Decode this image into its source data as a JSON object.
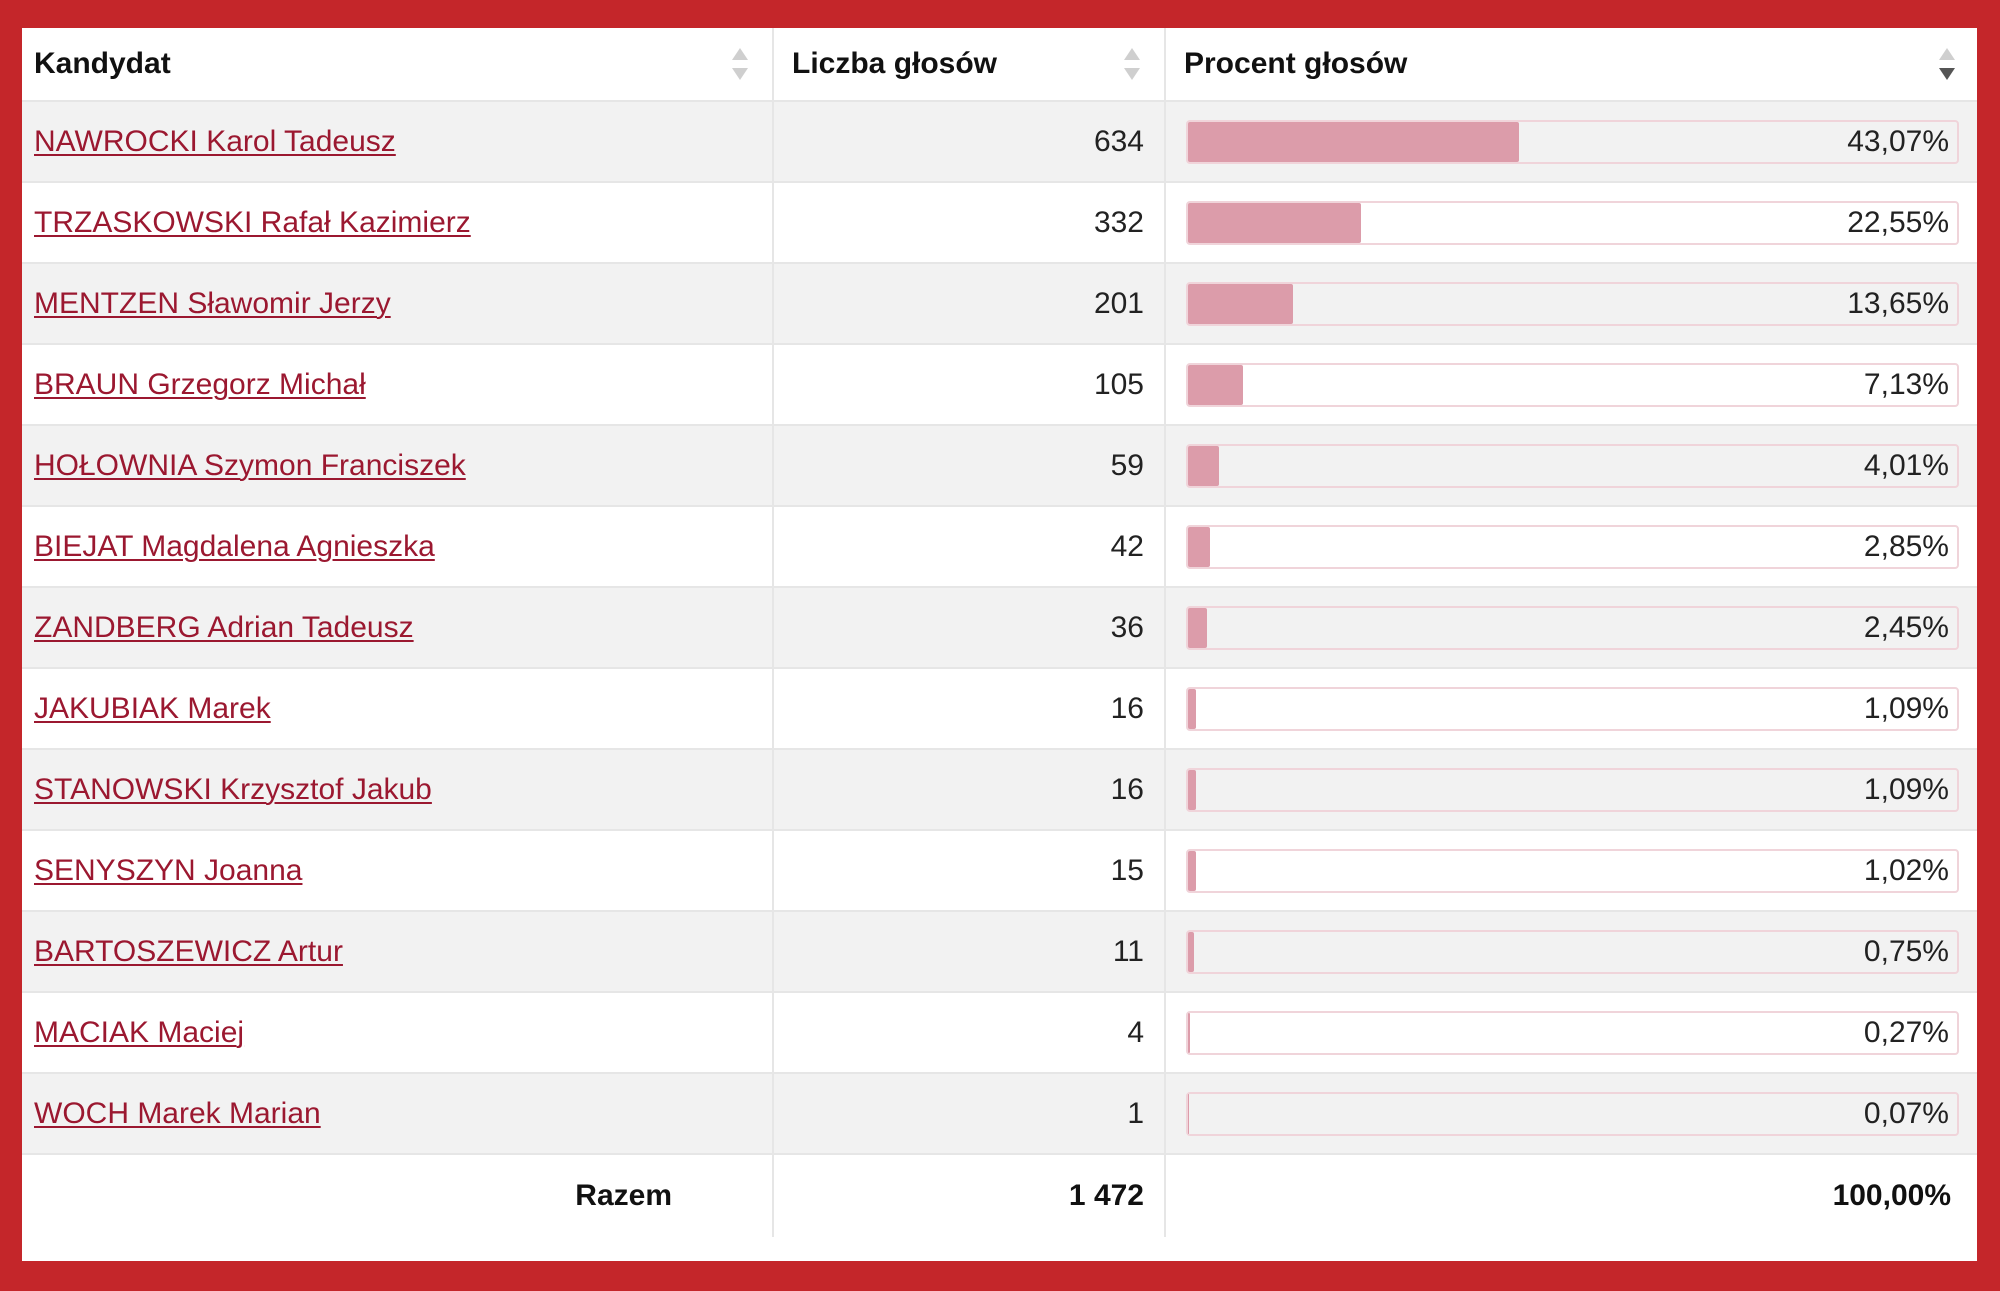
{
  "table": {
    "headers": [
      "Kandydat",
      "Liczba głosów",
      "Procent głosów"
    ],
    "rows": [
      {
        "name": "NAWROCKI Karol Tadeusz",
        "votes": "634",
        "percent_label": "43,07%",
        "percent": 43.07
      },
      {
        "name": "TRZASKOWSKI Rafał Kazimierz",
        "votes": "332",
        "percent_label": "22,55%",
        "percent": 22.55
      },
      {
        "name": "MENTZEN Sławomir Jerzy",
        "votes": "201",
        "percent_label": "13,65%",
        "percent": 13.65
      },
      {
        "name": "BRAUN Grzegorz Michał",
        "votes": "105",
        "percent_label": "7,13%",
        "percent": 7.13
      },
      {
        "name": "HOŁOWNIA Szymon Franciszek",
        "votes": "59",
        "percent_label": "4,01%",
        "percent": 4.01
      },
      {
        "name": "BIEJAT Magdalena Agnieszka",
        "votes": "42",
        "percent_label": "2,85%",
        "percent": 2.85
      },
      {
        "name": "ZANDBERG Adrian Tadeusz",
        "votes": "36",
        "percent_label": "2,45%",
        "percent": 2.45
      },
      {
        "name": "JAKUBIAK Marek",
        "votes": "16",
        "percent_label": "1,09%",
        "percent": 1.09
      },
      {
        "name": "STANOWSKI Krzysztof Jakub",
        "votes": "16",
        "percent_label": "1,09%",
        "percent": 1.09
      },
      {
        "name": "SENYSZYN Joanna",
        "votes": "15",
        "percent_label": "1,02%",
        "percent": 1.02
      },
      {
        "name": "BARTOSZEWICZ Artur",
        "votes": "11",
        "percent_label": "0,75%",
        "percent": 0.75
      },
      {
        "name": "MACIAK Maciej",
        "votes": "4",
        "percent_label": "0,27%",
        "percent": 0.27
      },
      {
        "name": "WOCH Marek Marian",
        "votes": "1",
        "percent_label": "0,07%",
        "percent": 0.07
      }
    ],
    "footer": {
      "label": "Razem",
      "votes": "1 472",
      "percent": "100,00%"
    }
  },
  "colors": {
    "frame": "#c4262a",
    "link": "#9b1830",
    "bar_fill": "#dc9caa",
    "bar_border": "#f0d4da"
  }
}
